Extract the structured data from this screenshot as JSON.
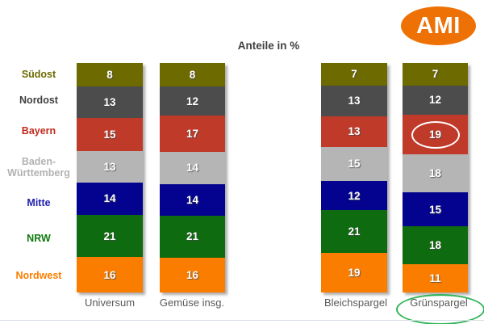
{
  "logo": {
    "text": "AMI",
    "color": "#EE7105"
  },
  "chart_data": {
    "type": "bar",
    "stacked": true,
    "orientation": "vertical",
    "title": "Anteile in %",
    "unit": "%",
    "categories": [
      "Universum",
      "Gemüse insg.",
      "Bleichspargel",
      "Grünspargel"
    ],
    "series": [
      {
        "name": "Südost",
        "color": "#6D6A00",
        "label_color": "#6D6A00",
        "values": [
          8,
          8,
          7,
          7
        ]
      },
      {
        "name": "Nordost",
        "color": "#4C4C4C",
        "label_color": "#3F3F3F",
        "values": [
          13,
          12,
          13,
          12
        ]
      },
      {
        "name": "Bayern",
        "color": "#C03A2A",
        "label_color": "#C22A1D",
        "values": [
          15,
          17,
          13,
          19
        ]
      },
      {
        "name": "Baden-Württemberg",
        "color": "#B5B5B5",
        "label_color": "#B2B2B2",
        "values": [
          13,
          14,
          15,
          18
        ]
      },
      {
        "name": "Mitte",
        "color": "#03038F",
        "label_color": "#2121AE",
        "values": [
          14,
          14,
          12,
          15
        ]
      },
      {
        "name": "NRW",
        "color": "#0F6B0F",
        "label_color": "#0E7A0E",
        "values": [
          21,
          21,
          21,
          18
        ]
      },
      {
        "name": "Nordwest",
        "color": "#FB7D00",
        "label_color": "#FA7D00",
        "values": [
          16,
          16,
          19,
          11
        ]
      }
    ],
    "legend_position": "left",
    "grid": false,
    "value_labels": "inside-white-bold",
    "annotations": {
      "circled_value": {
        "category": "Grünspargel",
        "series": "Bayern",
        "value": 19,
        "ellipse_color": "#FFFFFF"
      },
      "circled_category": {
        "label": "Grünspargel",
        "ellipse_color": "#2FB457"
      }
    }
  }
}
